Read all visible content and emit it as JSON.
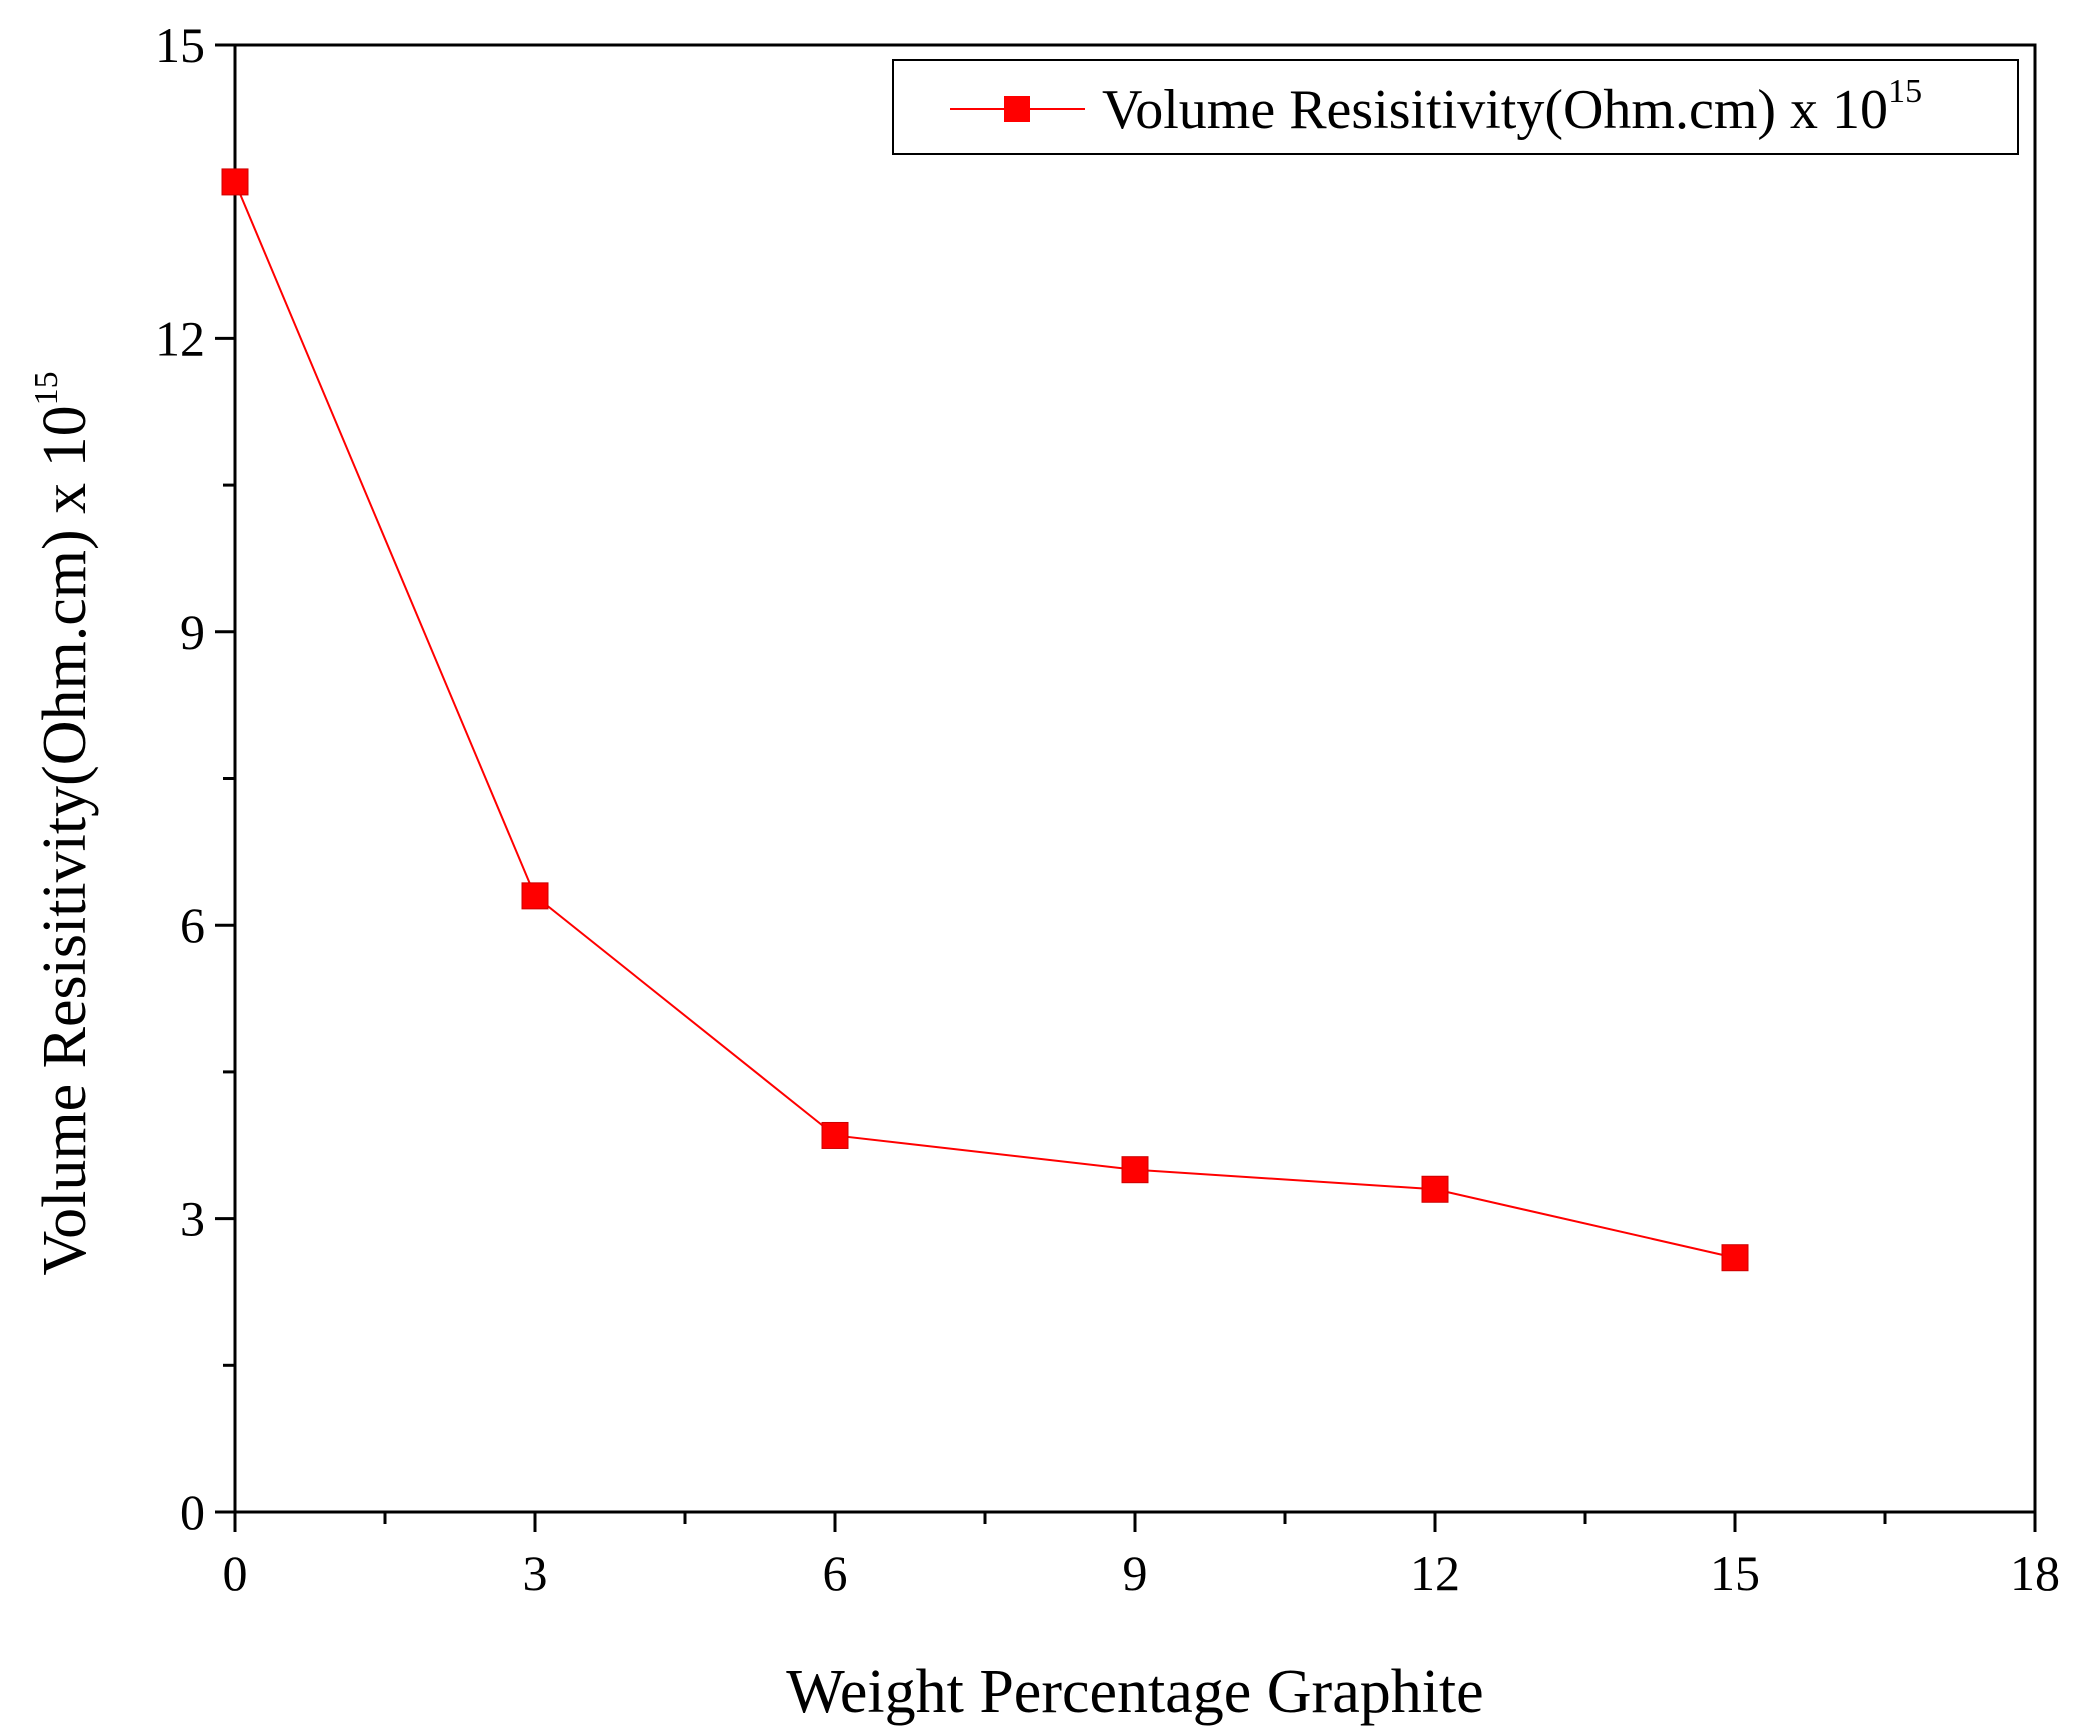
{
  "colors": {
    "series": "#ff0000",
    "axis": "#000000",
    "background": "#ffffff"
  },
  "chart_data": {
    "type": "line",
    "title": "",
    "xlabel": "Weight Percentage Graphite",
    "ylabel": {
      "base": "Volume Resisitivity(Ohm.cm) x 10",
      "exponent": "15"
    },
    "xlim": [
      0,
      18
    ],
    "ylim": [
      0,
      15
    ],
    "x_ticks": [
      0,
      3,
      6,
      9,
      12,
      15,
      18
    ],
    "y_ticks": [
      0,
      3,
      6,
      9,
      12,
      15
    ],
    "x_tick_labels": [
      "0",
      "3",
      "6",
      "9",
      "12",
      "15",
      "18"
    ],
    "y_tick_labels": [
      "0",
      "3",
      "6",
      "9",
      "12",
      "15"
    ],
    "grid": false,
    "legend_position": "top-right",
    "marker": "square",
    "x": [
      0,
      3,
      6,
      9,
      12,
      15
    ],
    "series": [
      {
        "name": "Volume Resisitivity(Ohm.cm) x 10",
        "name_exponent": "15",
        "values": [
          13.6,
          6.3,
          3.85,
          3.5,
          3.3,
          2.6
        ]
      }
    ]
  }
}
